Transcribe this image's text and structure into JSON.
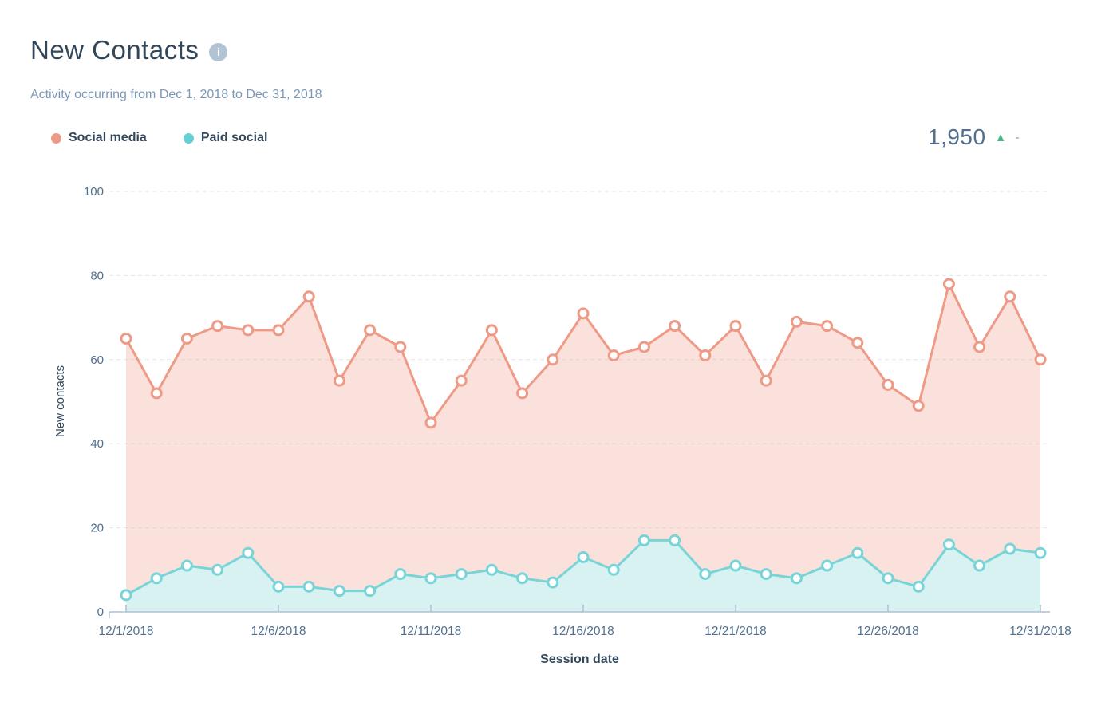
{
  "header": {
    "title": "New Contacts",
    "info_icon_glyph": "i",
    "subtitle": "Activity occurring from Dec 1, 2018 to Dec 31, 2018"
  },
  "legend": {
    "items": [
      {
        "label": "Social media",
        "color": "#ea9a85"
      },
      {
        "label": "Paid social",
        "color": "#64d0d6"
      }
    ]
  },
  "headline": {
    "value": "1,950",
    "trend_glyph": "▲",
    "trend_color": "#4cbb8c",
    "delta": "-"
  },
  "chart_data": {
    "type": "area",
    "title": "New Contacts",
    "xlabel": "Session date",
    "ylabel": "New contacts",
    "ylim": [
      0,
      100
    ],
    "yticks": [
      0,
      20,
      40,
      60,
      80,
      100
    ],
    "grid": "horizontal-dashed",
    "legend_position": "top-left",
    "x": [
      "12/1/2018",
      "12/2/2018",
      "12/3/2018",
      "12/4/2018",
      "12/5/2018",
      "12/6/2018",
      "12/7/2018",
      "12/8/2018",
      "12/9/2018",
      "12/10/2018",
      "12/11/2018",
      "12/12/2018",
      "12/13/2018",
      "12/14/2018",
      "12/15/2018",
      "12/16/2018",
      "12/17/2018",
      "12/18/2018",
      "12/19/2018",
      "12/20/2018",
      "12/21/2018",
      "12/22/2018",
      "12/23/2018",
      "12/24/2018",
      "12/25/2018",
      "12/26/2018",
      "12/27/2018",
      "12/28/2018",
      "12/29/2018",
      "12/30/2018",
      "12/31/2018"
    ],
    "xtick_labels": [
      "12/1/2018",
      "12/6/2018",
      "12/11/2018",
      "12/16/2018",
      "12/21/2018",
      "12/26/2018",
      "12/31/2018"
    ],
    "series": [
      {
        "name": "Social media",
        "color": "#ee9a87",
        "fill": "rgba(238,154,135,0.3)",
        "values": [
          65,
          52,
          65,
          68,
          67,
          67,
          75,
          55,
          67,
          63,
          45,
          55,
          67,
          52,
          60,
          71,
          61,
          63,
          68,
          61,
          68,
          55,
          69,
          68,
          64,
          54,
          49,
          78,
          63,
          75,
          60
        ]
      },
      {
        "name": "Paid social",
        "color": "#79d4d8",
        "fill": "#d8f2f1",
        "values": [
          4,
          8,
          11,
          10,
          14,
          6,
          6,
          5,
          5,
          9,
          8,
          9,
          10,
          8,
          7,
          13,
          10,
          17,
          17,
          9,
          11,
          9,
          8,
          11,
          14,
          8,
          6,
          16,
          11,
          15,
          14
        ]
      }
    ],
    "total_shown": 1950
  },
  "axis_style": {
    "tick_label_color": "#516f90",
    "axis_title_color": "#33475b",
    "gridline_color": "#e0e7ee",
    "axis_line_color": "#aec0d2"
  }
}
